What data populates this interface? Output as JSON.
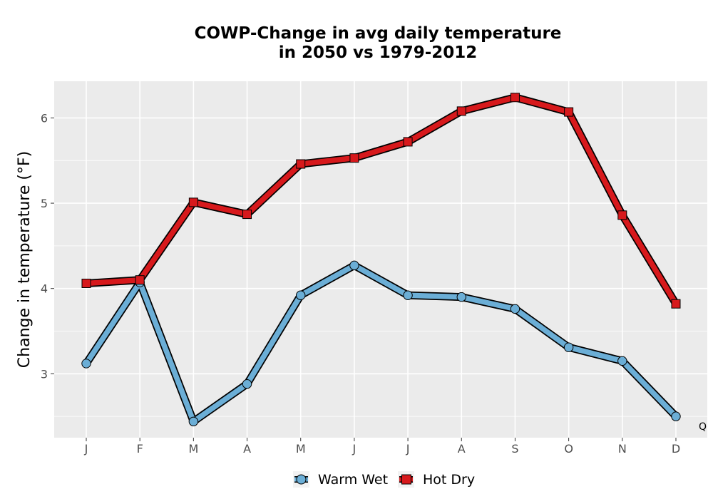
{
  "chart_data": {
    "type": "line",
    "title_line1": "COWP-Change in avg daily temperature",
    "title_line2": "in 2050 vs 1979-2012",
    "xlabel": "",
    "ylabel": "Change in temperature (°F)",
    "categories": [
      "J",
      "F",
      "M",
      "A",
      "M",
      "J",
      "J",
      "A",
      "S",
      "O",
      "N",
      "D"
    ],
    "ylim": [
      2.25,
      6.43
    ],
    "yticks": [
      3,
      4,
      5,
      6
    ],
    "grid": true,
    "legend_position": "bottom",
    "annotation": "Q",
    "series": [
      {
        "name": "Warm Wet",
        "marker": "circle",
        "color": "#6baed6",
        "values": [
          3.12,
          4.07,
          2.44,
          2.88,
          3.92,
          4.27,
          3.92,
          3.9,
          3.76,
          3.31,
          3.15,
          2.5
        ]
      },
      {
        "name": "Hot Dry",
        "marker": "square",
        "color": "#d7191c",
        "values": [
          4.06,
          4.1,
          5.01,
          4.87,
          5.46,
          5.53,
          5.72,
          6.08,
          6.24,
          6.07,
          4.86,
          3.82
        ]
      }
    ],
    "colors": {
      "panel_background": "#ebebeb",
      "grid_line": "#ffffff",
      "outline": "#000000"
    }
  }
}
